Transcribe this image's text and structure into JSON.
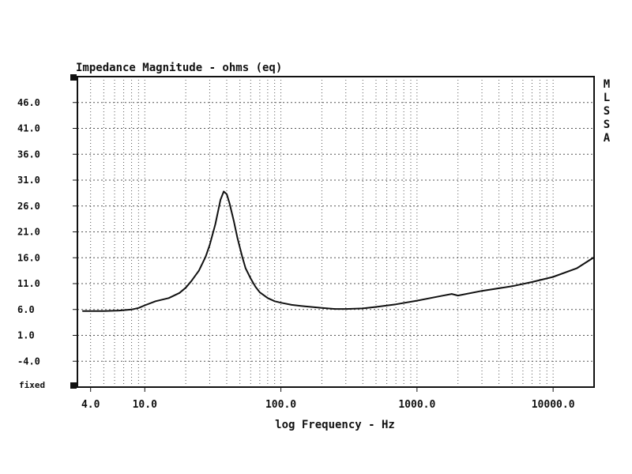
{
  "chart_data": {
    "type": "line",
    "title": "Impedance Magnitude - ohms (eq)",
    "xlabel": "log Frequency - Hz",
    "ylabel": "",
    "x_scale": "log",
    "xlim": [
      3.2,
      20000
    ],
    "ylim": [
      -9,
      51
    ],
    "grid": true,
    "y_ticks": [
      {
        "value": 46,
        "label": "46.0"
      },
      {
        "value": 41,
        "label": "41.0"
      },
      {
        "value": 36,
        "label": "36.0"
      },
      {
        "value": 31,
        "label": "31.0"
      },
      {
        "value": 26,
        "label": "26.0"
      },
      {
        "value": 21,
        "label": "21.0"
      },
      {
        "value": 16,
        "label": "16.0"
      },
      {
        "value": 11,
        "label": "11.0"
      },
      {
        "value": 6,
        "label": "6.0"
      },
      {
        "value": 1,
        "label": "1.0"
      },
      {
        "value": -4,
        "label": "-4.0"
      }
    ],
    "y_bottom_label": "fixed",
    "x_ticks": [
      {
        "value": 4,
        "label": "4.0"
      },
      {
        "value": 10,
        "label": "10.0"
      },
      {
        "value": 100,
        "label": "100.0"
      },
      {
        "value": 1000,
        "label": "1000.0"
      },
      {
        "value": 10000,
        "label": "10000.0"
      }
    ],
    "side_label": [
      "M",
      "L",
      "S",
      "S",
      "A"
    ],
    "series": [
      {
        "x": [
          3.5,
          5,
          6.5,
          8,
          9,
          10,
          12,
          15,
          18,
          20,
          22,
          25,
          28,
          30,
          33,
          36,
          38,
          40,
          42,
          45,
          48,
          52,
          55,
          60,
          65,
          70,
          80,
          90,
          100,
          120,
          150,
          200,
          250,
          300,
          400,
          500,
          700,
          1000,
          1500,
          1800,
          2000,
          3000,
          5000,
          7000,
          10000,
          15000,
          20000
        ],
        "values": [
          5.7,
          5.7,
          5.8,
          6.0,
          6.3,
          6.8,
          7.6,
          8.2,
          9.2,
          10.2,
          11.5,
          13.5,
          16.2,
          18.5,
          22.5,
          27.2,
          28.8,
          28.3,
          26.5,
          23.2,
          19.8,
          16.2,
          14.0,
          12.0,
          10.4,
          9.3,
          8.2,
          7.6,
          7.3,
          6.9,
          6.6,
          6.3,
          6.1,
          6.1,
          6.2,
          6.5,
          7.0,
          7.7,
          8.6,
          9.0,
          8.7,
          9.6,
          10.5,
          11.3,
          12.3,
          14.0,
          16.1
        ],
        "color": "#111111"
      }
    ],
    "colors": {
      "grid": "#555555",
      "line": "#111111",
      "axis": "#111111"
    }
  }
}
